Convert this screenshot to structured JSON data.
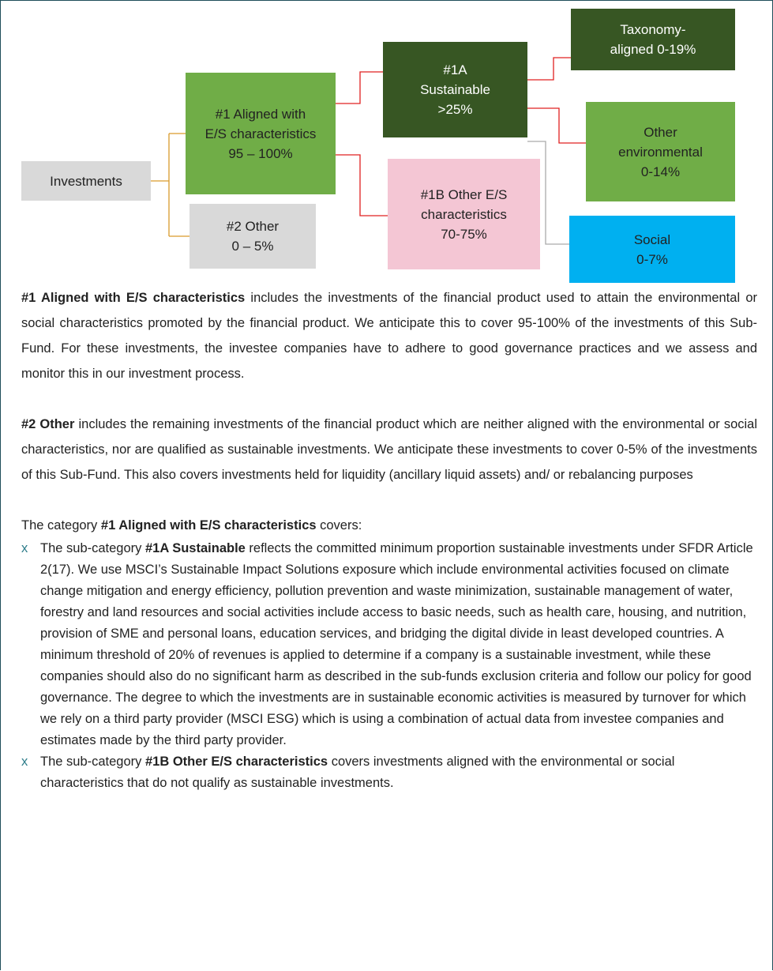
{
  "diagram": {
    "nodes": [
      {
        "label": "Investments"
      },
      {
        "label": "#1 Aligned with\nE/S characteristics\n95 – 100%"
      },
      {
        "label": "#2 Other\n0 – 5%"
      },
      {
        "label": "#1A\nSustainable\n>25%"
      },
      {
        "label": "#1B Other E/S\ncharacteristics\n70-75%"
      },
      {
        "label": "Taxonomy-\naligned 0-19%"
      },
      {
        "label": "Other\nenvironmental\n0-14%"
      },
      {
        "label": "Social\n0-7%"
      }
    ]
  },
  "paragraphs": [
    {
      "bold": "#1 Aligned with E/S characteristics",
      "text": " includes the investments of the financial product used to attain the environmental or social characteristics promoted by the financial product. We anticipate this to cover 95-100% of the investments of this Sub-Fund. For these investments, the investee companies have to adhere to good governance practices and we assess and monitor this in our investment process."
    },
    {
      "bold": "#2 Other",
      "text": " includes the remaining investments of the financial product which are neither aligned with the environmental or social characteristics, nor are qualified as sustainable investments. We anticipate these investments to cover 0-5% of the investments of this Sub-Fund. This also covers investments held for liquidity (ancillary liquid assets) and/ or rebalancing purposes"
    }
  ],
  "category": {
    "before": "The category ",
    "bold": "#1 Aligned with E/S characteristics",
    "after": " covers:"
  },
  "bullet_marker": "x",
  "bullets": [
    {
      "before": "The sub-category ",
      "bold": "#1A Sustainable",
      "after": " reflects the committed minimum proportion sustainable investments under SFDR Article 2(17). We use MSCI’s Sustainable Impact Solutions exposure which include environmental activities focused on climate change mitigation and energy efficiency, pollution prevention and waste minimization, sustainable management of water, forestry and land resources and social activities include access to basic needs, such as health care, housing, and nutrition, provision of SME and personal loans, education services, and bridging the digital divide in least developed countries. A minimum threshold of 20% of revenues is applied to determine if a company is a sustainable investment, while these companies should also do no significant harm as described in the sub-funds exclusion criteria and follow our policy for good governance. The degree to which the investments are in sustainable economic activities is measured by turnover for which we rely on a third party provider (MSCI ESG) which is using a combination of actual data from investee companies and estimates made by the third party provider."
    },
    {
      "before": "The sub-category ",
      "bold": "#1B Other E/S characteristics",
      "after": " covers investments aligned with the environmental or social characteristics that do not qualify as sustainable investments."
    }
  ]
}
